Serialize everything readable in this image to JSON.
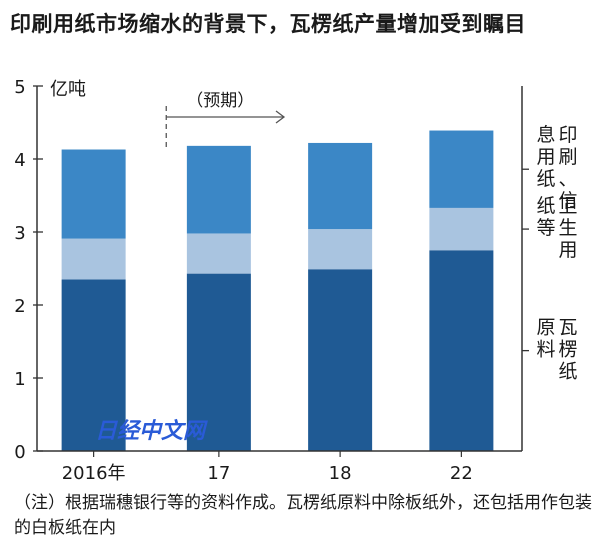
{
  "title": "印刷用纸市场缩水的背景下，瓦楞纸产量增加受到瞩目",
  "note": "（注）根据瑞穗银行等的资料作成。瓦楞纸原料中除板纸外，还包括用作包装的白板纸在内",
  "watermark": "日经中文网",
  "colors": {
    "corrugated": "#1f5a94",
    "sanitary": "#a9c4e0",
    "printing": "#3b87c6"
  },
  "chart_data": {
    "type": "bar",
    "stacked": true,
    "categories": [
      "2016年",
      "17",
      "18",
      "22"
    ],
    "ylabel": "亿吨",
    "ylim": [
      0,
      5
    ],
    "yticks": [
      0,
      1,
      2,
      3,
      4,
      5
    ],
    "forecast_label": "（预期）",
    "forecast_from_category": "17",
    "series": [
      {
        "name": "瓦楞纸原料",
        "color": "#1f5a94",
        "values": [
          2.35,
          2.43,
          2.49,
          2.75
        ]
      },
      {
        "name": "卫生用纸等",
        "color": "#a9c4e0",
        "values": [
          0.56,
          0.55,
          0.55,
          0.58
        ]
      },
      {
        "name": "印刷、信息用纸",
        "color": "#3b87c6",
        "values": [
          1.22,
          1.2,
          1.18,
          1.06
        ]
      }
    ],
    "legend_placement": "right"
  }
}
